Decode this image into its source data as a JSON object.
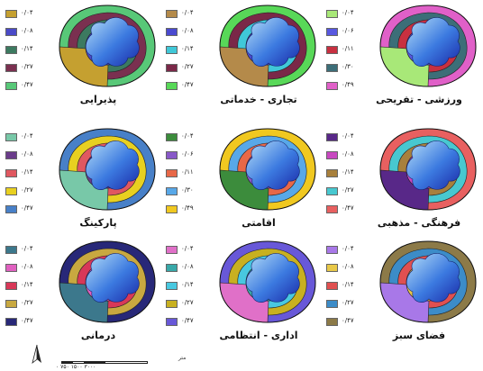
{
  "panels": [
    {
      "id": "pazirayi",
      "title": "پذیرایی",
      "legend": [
        {
          "value": "۰/۰۴",
          "color": "#c5a030"
        },
        {
          "value": "۰/۰۸",
          "color": "#4a4ac8"
        },
        {
          "value": "۰/۱۴",
          "color": "#3c7a60"
        },
        {
          "value": "۰/۲۷",
          "color": "#7a3050"
        },
        {
          "value": "۰/۴۷",
          "color": "#58c878"
        }
      ]
    },
    {
      "id": "tejari",
      "title": "تجاری - خدماتی",
      "legend": [
        {
          "value": "۰/۰۴",
          "color": "#b48a4a"
        },
        {
          "value": "۰/۰۸",
          "color": "#4a4ad0"
        },
        {
          "value": "۰/۱۴",
          "color": "#40c8d8"
        },
        {
          "value": "۰/۲۷",
          "color": "#7a2848"
        },
        {
          "value": "۰/۴۷",
          "color": "#58d858"
        }
      ]
    },
    {
      "id": "varzeshi",
      "title": "ورزشی - تفریحی",
      "legend": [
        {
          "value": "۰/۰۴",
          "color": "#a8e878"
        },
        {
          "value": "۰/۰۶",
          "color": "#5858e0"
        },
        {
          "value": "۰/۱۱",
          "color": "#c83040"
        },
        {
          "value": "۰/۳۰",
          "color": "#3c6e78"
        },
        {
          "value": "۰/۴۹",
          "color": "#e060c8"
        }
      ]
    },
    {
      "id": "parking",
      "title": "پارکینگ",
      "legend": [
        {
          "value": "۰/۰۴",
          "color": "#78c8a8"
        },
        {
          "value": "۰/۰۸",
          "color": "#6a3c8a"
        },
        {
          "value": "۰/۱۴",
          "color": "#e05860"
        },
        {
          "value": "۰/۲۷",
          "color": "#e8d020"
        },
        {
          "value": "۰/۴۷",
          "color": "#4880c8"
        }
      ]
    },
    {
      "id": "eghamati",
      "title": "اقامتی",
      "legend": [
        {
          "value": "۰/۰۴",
          "color": "#3c8c3c"
        },
        {
          "value": "۰/۰۶",
          "color": "#8858c8"
        },
        {
          "value": "۰/۱۱",
          "color": "#e86848"
        },
        {
          "value": "۰/۳۰",
          "color": "#58a8e8"
        },
        {
          "value": "۰/۴۹",
          "color": "#f0c820"
        }
      ]
    },
    {
      "id": "farhangi",
      "title": "فرهنگی - مذهبی",
      "legend": [
        {
          "value": "۰/۰۴",
          "color": "#582888"
        },
        {
          "value": "۰/۰۸",
          "color": "#c848c0"
        },
        {
          "value": "۰/۱۴",
          "color": "#a8803c"
        },
        {
          "value": "۰/۲۷",
          "color": "#48c8d0"
        },
        {
          "value": "۰/۴۷",
          "color": "#e86060"
        }
      ]
    },
    {
      "id": "darmani",
      "title": "درمانی",
      "legend": [
        {
          "value": "۰/۰۴",
          "color": "#3c788c"
        },
        {
          "value": "۰/۰۸",
          "color": "#e060c0"
        },
        {
          "value": "۰/۱۴",
          "color": "#d83858"
        },
        {
          "value": "۰/۲۷",
          "color": "#c8a840"
        },
        {
          "value": "۰/۴۷",
          "color": "#282878"
        }
      ]
    },
    {
      "id": "edari",
      "title": "اداری - انتظامی",
      "legend": [
        {
          "value": "۰/۰۴",
          "color": "#e070c8"
        },
        {
          "value": "۰/۰۸",
          "color": "#38a8a8"
        },
        {
          "value": "۰/۱۴",
          "color": "#48c8e0"
        },
        {
          "value": "۰/۲۷",
          "color": "#c8b020"
        },
        {
          "value": "۰/۴۷",
          "color": "#6858d8"
        }
      ]
    },
    {
      "id": "fazaye-sabz",
      "title": "فضای سبز",
      "legend": [
        {
          "value": "۰/۰۴",
          "color": "#a878e8"
        },
        {
          "value": "۰/۰۸",
          "color": "#e8c848"
        },
        {
          "value": "۰/۱۴",
          "color": "#e05050"
        },
        {
          "value": "۰/۲۷",
          "color": "#3c8cc8"
        },
        {
          "value": "۰/۴۷",
          "color": "#8c7a48"
        }
      ]
    }
  ],
  "scale": {
    "labels": "۰  ۷۵۰  ۱۵۰۰  ۳۰۰۰",
    "unit": "متر"
  },
  "north_label": "N"
}
